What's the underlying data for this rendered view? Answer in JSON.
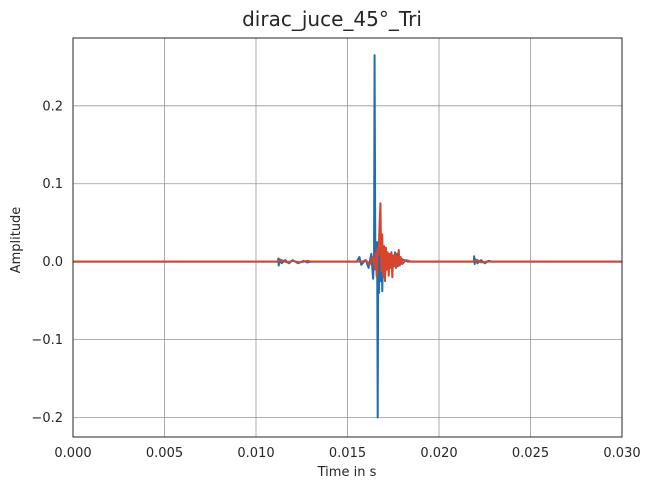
{
  "chart_data": {
    "type": "line",
    "title": "dirac_juce_45°_Tri",
    "xlabel": "Time in s",
    "ylabel": "Amplitude",
    "xlim": [
      0.0,
      0.03
    ],
    "ylim": [
      -0.225,
      0.287
    ],
    "grid": true,
    "xticks": [
      0.0,
      0.005,
      0.01,
      0.015,
      0.02,
      0.025,
      0.03
    ],
    "xtick_labels": [
      "0.000",
      "0.005",
      "0.010",
      "0.015",
      "0.020",
      "0.025",
      "0.030"
    ],
    "yticks": [
      -0.2,
      -0.1,
      0.0,
      0.1,
      0.2
    ],
    "ytick_labels": [
      "−0.2",
      "−0.1",
      "0.0",
      "0.1",
      "0.2"
    ],
    "colors": {
      "series_blue": "#1f6db3",
      "series_red": "#d9452a",
      "grid": "#8c8c8c",
      "axes_edge": "#262626"
    },
    "series": [
      {
        "color": "#1f6db3",
        "x": [
          0.0,
          0.0112,
          0.01122,
          0.01124,
          0.0113,
          0.0114,
          0.0116,
          0.0118,
          0.012,
          0.0123,
          0.0126,
          0.0128,
          0.013,
          0.0155,
          0.01565,
          0.01575,
          0.0159,
          0.016,
          0.01615,
          0.0163,
          0.0164,
          0.01645,
          0.01648,
          0.01652,
          0.01658,
          0.0166,
          0.01662,
          0.01665,
          0.01668,
          0.0167,
          0.01672,
          0.01675,
          0.01678,
          0.01682,
          0.01686,
          0.0169,
          0.01694,
          0.01698,
          0.01702,
          0.01706,
          0.0171,
          0.01715,
          0.0172,
          0.01725,
          0.0173,
          0.01735,
          0.0174,
          0.01745,
          0.0175,
          0.01755,
          0.0176,
          0.01765,
          0.0177,
          0.01775,
          0.0178,
          0.0179,
          0.018,
          0.0183,
          0.0186,
          0.0219,
          0.02192,
          0.02195,
          0.022,
          0.0221,
          0.0223,
          0.0225,
          0.0227,
          0.0229,
          0.025,
          0.027,
          0.03
        ],
        "values": [
          0.0,
          0.0,
          0.004,
          -0.005,
          0.003,
          -0.002,
          0.002,
          -0.002,
          0.002,
          -0.002,
          0.001,
          -0.001,
          0.0,
          0.0,
          0.006,
          -0.004,
          0.0,
          0.002,
          -0.008,
          0.01,
          -0.022,
          0.008,
          0.265,
          0.01,
          0.016,
          -0.018,
          0.025,
          -0.2,
          0.02,
          0.025,
          -0.04,
          0.018,
          -0.01,
          -0.025,
          0.015,
          -0.038,
          0.012,
          -0.02,
          0.01,
          -0.015,
          0.01,
          -0.01,
          0.01,
          -0.008,
          0.005,
          -0.006,
          0.012,
          -0.01,
          0.008,
          -0.006,
          0.012,
          -0.008,
          0.01,
          -0.006,
          0.006,
          -0.003,
          0.003,
          0.0,
          0.0,
          0.0,
          0.007,
          -0.003,
          0.003,
          -0.002,
          0.002,
          -0.002,
          0.001,
          0.0,
          0.0,
          0.0,
          0.0
        ]
      },
      {
        "color": "#d9452a",
        "x": [
          0.0,
          0.0112,
          0.0114,
          0.0117,
          0.012,
          0.0124,
          0.0128,
          0.013,
          0.0158,
          0.016,
          0.0162,
          0.0164,
          0.0165,
          0.01655,
          0.0166,
          0.01665,
          0.0167,
          0.01675,
          0.0168,
          0.01685,
          0.0169,
          0.01695,
          0.017,
          0.01705,
          0.0171,
          0.01715,
          0.0172,
          0.01725,
          0.0173,
          0.01735,
          0.0174,
          0.01745,
          0.0175,
          0.01755,
          0.0176,
          0.01765,
          0.0177,
          0.01775,
          0.0178,
          0.01785,
          0.0179,
          0.018,
          0.0182,
          0.0185,
          0.0219,
          0.0221,
          0.0223,
          0.0226,
          0.03
        ],
        "values": [
          0.0,
          0.0,
          0.002,
          -0.001,
          0.001,
          -0.001,
          0.001,
          0.0,
          0.0,
          0.002,
          -0.004,
          0.006,
          -0.01,
          0.012,
          -0.02,
          0.018,
          0.008,
          0.048,
          0.075,
          -0.012,
          0.035,
          -0.02,
          0.02,
          -0.025,
          0.018,
          -0.01,
          0.012,
          -0.018,
          0.01,
          -0.008,
          0.01,
          -0.02,
          0.008,
          -0.006,
          0.01,
          -0.008,
          0.006,
          -0.004,
          0.015,
          -0.005,
          0.006,
          -0.003,
          0.002,
          0.0,
          0.0,
          0.002,
          -0.001,
          0.0,
          0.0
        ]
      }
    ]
  }
}
